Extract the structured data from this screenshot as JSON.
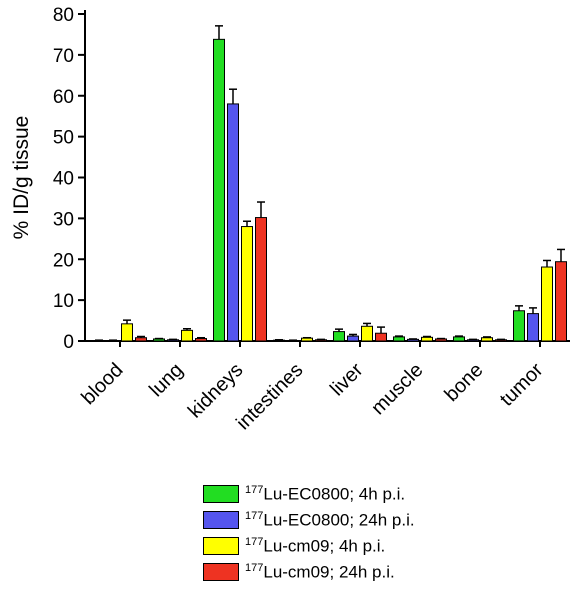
{
  "chart_data": {
    "type": "bar",
    "ylabel": "% ID/g tissue",
    "ylim": [
      0,
      80
    ],
    "yticks": [
      0,
      10,
      20,
      30,
      40,
      50,
      60,
      70,
      80
    ],
    "categories": [
      "blood",
      "lung",
      "kidneys",
      "intestines",
      "liver",
      "muscle",
      "bone",
      "tumor"
    ],
    "legend_position": "bottom-right",
    "series": [
      {
        "sup": "177",
        "name": "Lu-EC0800; 4h p.i.",
        "color": "#22dd22",
        "values": [
          0.1,
          0.5,
          73.8,
          0.2,
          2.3,
          1.0,
          1.0,
          7.4
        ],
        "errors": [
          0.1,
          0.1,
          3.3,
          0.1,
          0.6,
          0.2,
          0.2,
          1.2
        ]
      },
      {
        "sup": "177",
        "name": "Lu-EC0800; 24h p.i.",
        "color": "#5555ee",
        "values": [
          0.1,
          0.3,
          58.0,
          0.1,
          1.2,
          0.4,
          0.3,
          6.7
        ],
        "errors": [
          0.1,
          0.1,
          3.6,
          0.1,
          0.4,
          0.1,
          0.1,
          1.4
        ]
      },
      {
        "sup": "177",
        "name": "Lu-cm09; 4h p.i.",
        "color": "#ffff00",
        "values": [
          4.2,
          2.6,
          28.0,
          0.7,
          3.6,
          0.9,
          0.8,
          18.1
        ],
        "errors": [
          0.9,
          0.4,
          1.3,
          0.1,
          0.7,
          0.2,
          0.2,
          1.6
        ]
      },
      {
        "sup": "177",
        "name": "Lu-cm09; 24h p.i.",
        "color": "#ee3322",
        "values": [
          0.8,
          0.6,
          30.2,
          0.3,
          1.9,
          0.5,
          0.3,
          19.4
        ],
        "errors": [
          0.3,
          0.2,
          3.8,
          0.1,
          1.5,
          0.1,
          0.1,
          3.0
        ]
      }
    ]
  }
}
